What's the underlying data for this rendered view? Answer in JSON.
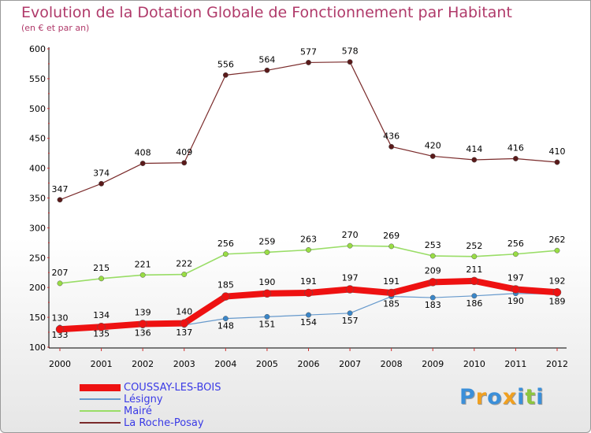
{
  "title": "Evolution de la Dotation Globale de Fonctionnement par Habitant",
  "subtitle": "(en € et par an)",
  "logo_text": "Proxiti",
  "colors": {
    "COUSSAY-LES-BOIS": "#ee1111",
    "Lésigny": "#6699cc",
    "Mairé": "#99dd66",
    "La Roche-Posay": "#7a2a2a"
  },
  "chart_data": {
    "type": "line",
    "title": "Evolution de la Dotation Globale de Fonctionnement par Habitant",
    "subtitle": "(en € et par an)",
    "xlabel": "",
    "ylabel": "",
    "ylim": [
      100,
      600
    ],
    "yticks": [
      100,
      150,
      200,
      250,
      300,
      350,
      400,
      450,
      500,
      550,
      600
    ],
    "grid": false,
    "legend_position": "bottom-left",
    "categories": [
      "2000",
      "2001",
      "2002",
      "2003",
      "2004",
      "2005",
      "2006",
      "2007",
      "2008",
      "2009",
      "2010",
      "2011",
      "2012"
    ],
    "series": [
      {
        "name": "COUSSAY-LES-BOIS",
        "values": [
          130,
          134,
          139,
          140,
          185,
          190,
          191,
          197,
          191,
          209,
          211,
          197,
          192
        ]
      },
      {
        "name": "Lésigny",
        "values": [
          133,
          135,
          136,
          137,
          148,
          151,
          154,
          157,
          185,
          183,
          186,
          190,
          189
        ]
      },
      {
        "name": "Mairé",
        "values": [
          207,
          215,
          221,
          222,
          256,
          259,
          263,
          270,
          269,
          253,
          252,
          256,
          262
        ]
      },
      {
        "name": "La Roche-Posay",
        "values": [
          347,
          374,
          408,
          409,
          556,
          564,
          577,
          578,
          436,
          420,
          414,
          416,
          410
        ]
      }
    ]
  }
}
